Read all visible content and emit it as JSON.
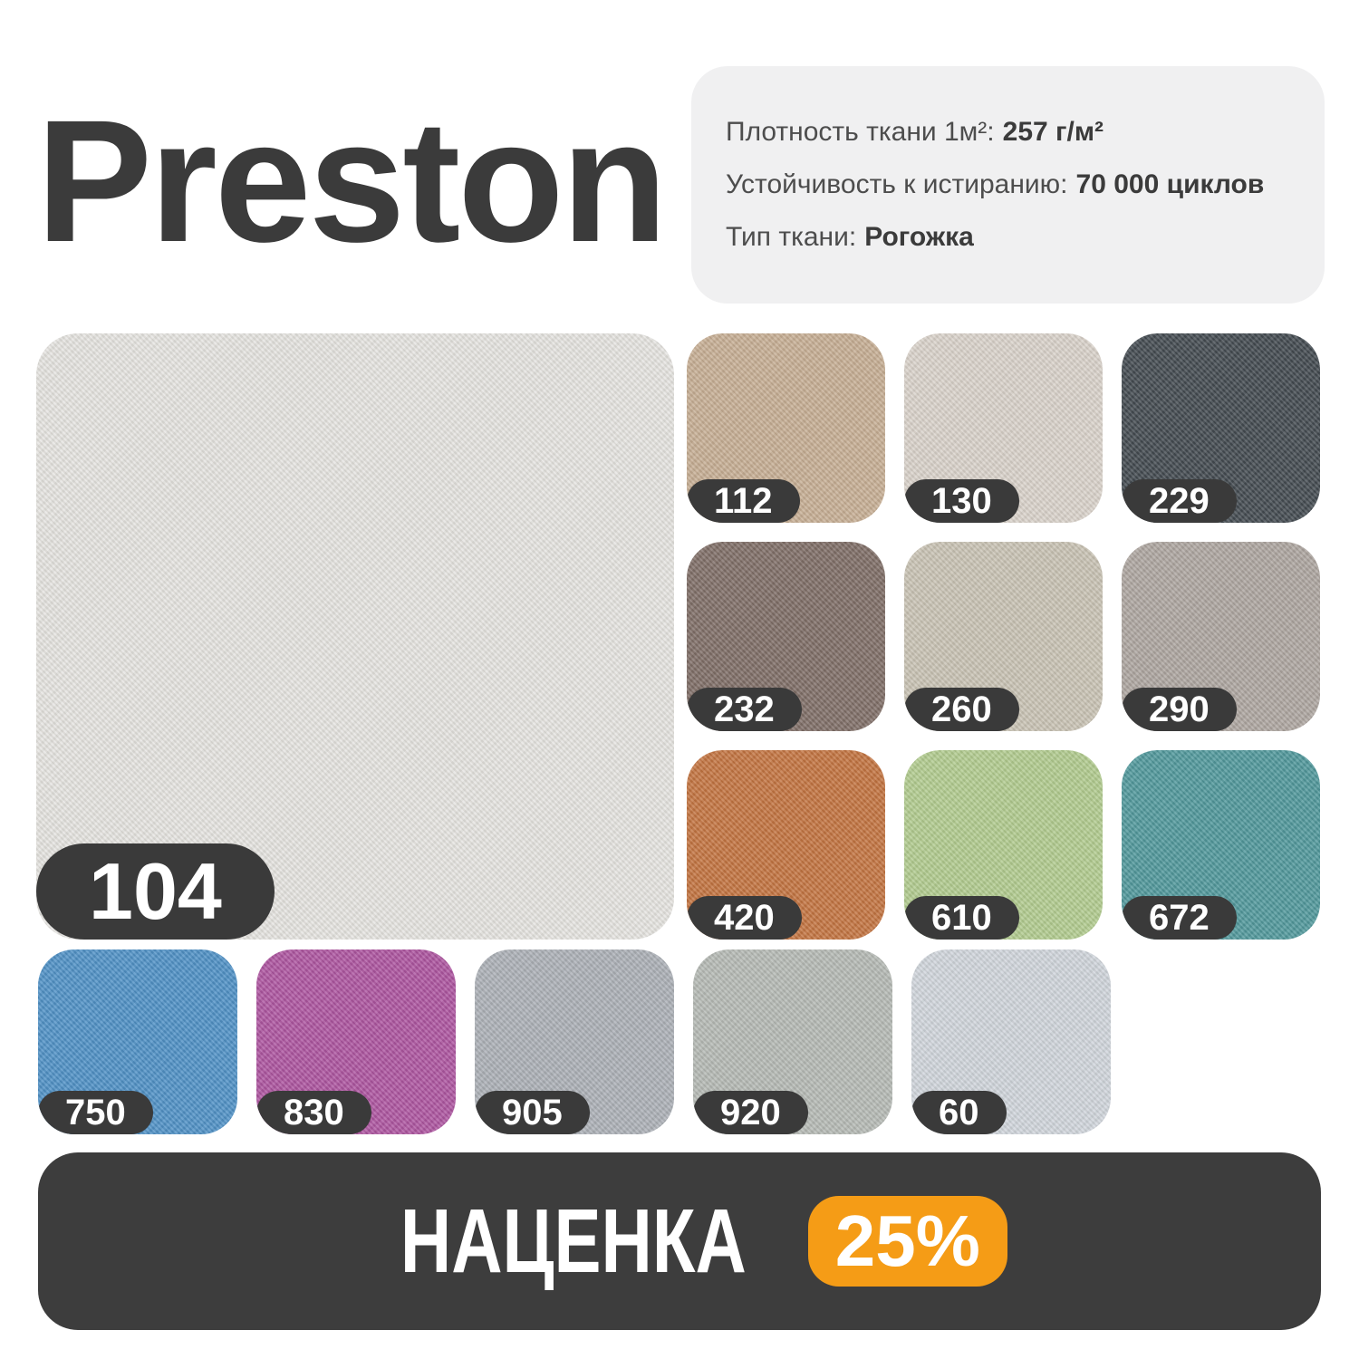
{
  "header": {
    "title": "Preston"
  },
  "specs": [
    {
      "label": "Плотность ткани 1м²:",
      "value": "257 г/м²"
    },
    {
      "label": "Устойчивость к истиранию:",
      "value": "70 000 циклов"
    },
    {
      "label": "Тип ткани:",
      "value": "Рогожка"
    }
  ],
  "featured": {
    "code": "104",
    "color": "#e4e3e0"
  },
  "grid_swatches": [
    {
      "code": "112",
      "color": "#c5ac91"
    },
    {
      "code": "130",
      "color": "#d8d1c9"
    },
    {
      "code": "229",
      "color": "#3d454b"
    },
    {
      "code": "232",
      "color": "#7b6a63"
    },
    {
      "code": "260",
      "color": "#c7c1b2"
    },
    {
      "code": "290",
      "color": "#aba39e"
    },
    {
      "code": "420",
      "color": "#c1703c"
    },
    {
      "code": "610",
      "color": "#afca8c"
    },
    {
      "code": "672",
      "color": "#4b9599"
    }
  ],
  "bottom_swatches": [
    {
      "code": "750",
      "color": "#4a8ec5"
    },
    {
      "code": "830",
      "color": "#ab509e"
    },
    {
      "code": "905",
      "color": "#a9aeb5"
    },
    {
      "code": "920",
      "color": "#b3b8b3"
    },
    {
      "code": "60",
      "color": "#cfd4db"
    }
  ],
  "markup": {
    "label": "НАЦЕНКА",
    "value": "25%"
  },
  "colors": {
    "title_color": "#3b3b3b",
    "info_bg": "#f0f0f1",
    "badge_dark": "#3a3a3a",
    "bar_bg": "#3d3d3d",
    "accent_orange": "#f59c16"
  }
}
